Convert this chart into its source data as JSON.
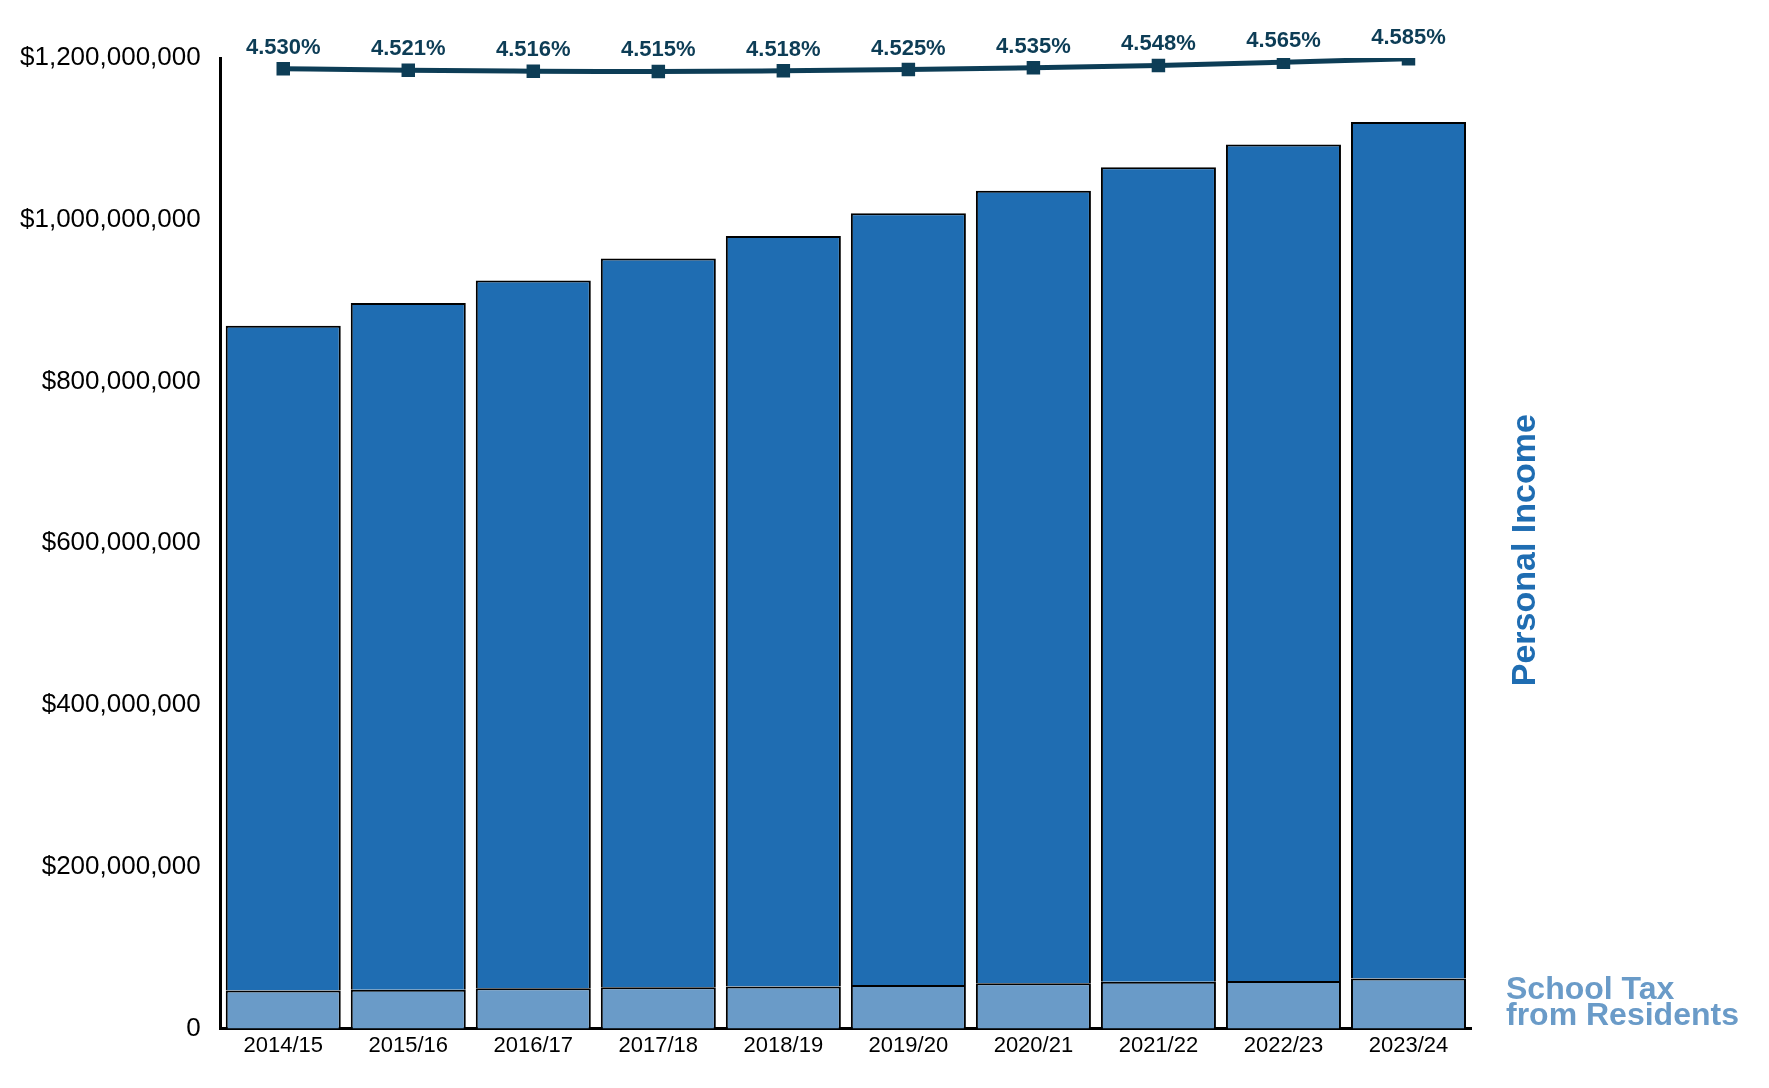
{
  "chart_data": {
    "type": "bar",
    "stacked": true,
    "categories": [
      "2014/15",
      "2015/16",
      "2016/17",
      "2017/18",
      "2018/19",
      "2019/20",
      "2020/21",
      "2021/22",
      "2022/23",
      "2023/24"
    ],
    "series": [
      {
        "name": "School Tax from Residents",
        "color": "#6a9bc8",
        "values": [
          47000000,
          48000000,
          50000000,
          51000000,
          52000000,
          54000000,
          56000000,
          58000000,
          59000000,
          62000000
        ]
      },
      {
        "name": "Personal Income",
        "color": "#1f6db2",
        "values": [
          822000000,
          849000000,
          875000000,
          901000000,
          928000000,
          954000000,
          980000000,
          1007000000,
          1034000000,
          1059000000
        ]
      },
      {
        "type": "line",
        "axis": "y2",
        "color": "#0d3d56",
        "values": [
          4.53,
          4.521,
          4.516,
          4.515,
          4.518,
          4.525,
          4.535,
          4.548,
          4.565,
          4.585
        ],
        "value_labels": [
          "4.530%",
          "4.521%",
          "4.516%",
          "4.515%",
          "4.518%",
          "4.525%",
          "4.535%",
          "4.548%",
          "4.565%",
          "4.585%"
        ]
      }
    ],
    "marker": "square",
    "grid": false,
    "legend": false,
    "ylim": [
      0,
      1200000000
    ],
    "yticks": [
      {
        "value": 0,
        "label": "0"
      },
      {
        "value": 200000000,
        "label": "$200,000,000"
      },
      {
        "value": 400000000,
        "label": "$400,000,000"
      },
      {
        "value": 600000000,
        "label": "$600,000,000"
      },
      {
        "value": 800000000,
        "label": "$800,000,000"
      },
      {
        "value": 1000000000,
        "label": "$1,000,000,000"
      },
      {
        "value": 1200000000,
        "label": "$1,200,000,000"
      }
    ]
  }
}
